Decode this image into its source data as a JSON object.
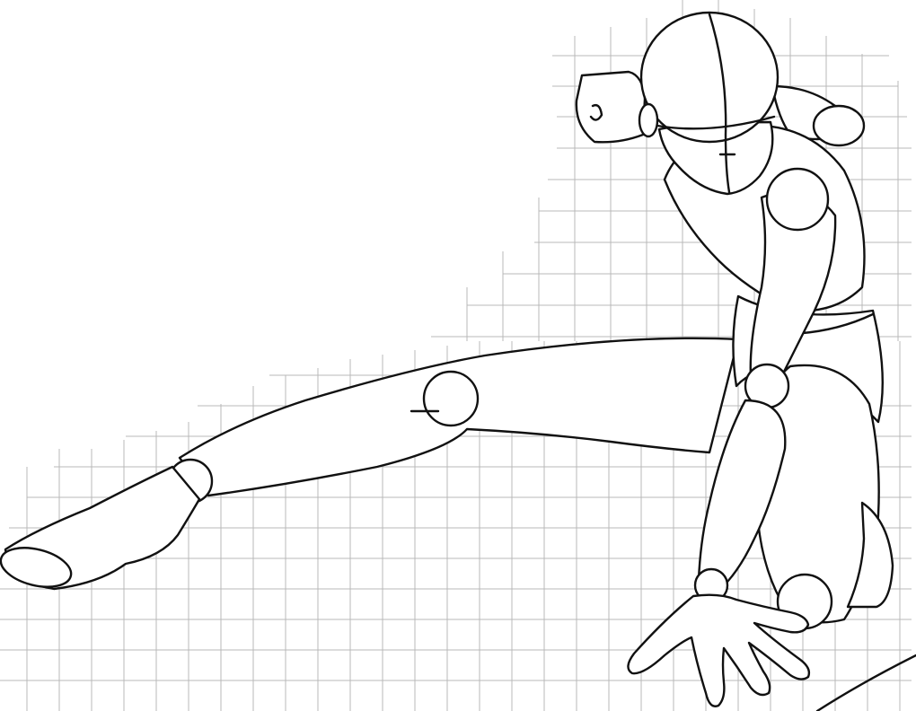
{
  "artwork": {
    "subject": "crouching-mannequin-figure-sketch",
    "background_color": "#ffffff",
    "ink_color": "#111111",
    "grid_color": "#b9b9b9",
    "grid_visible": true
  }
}
